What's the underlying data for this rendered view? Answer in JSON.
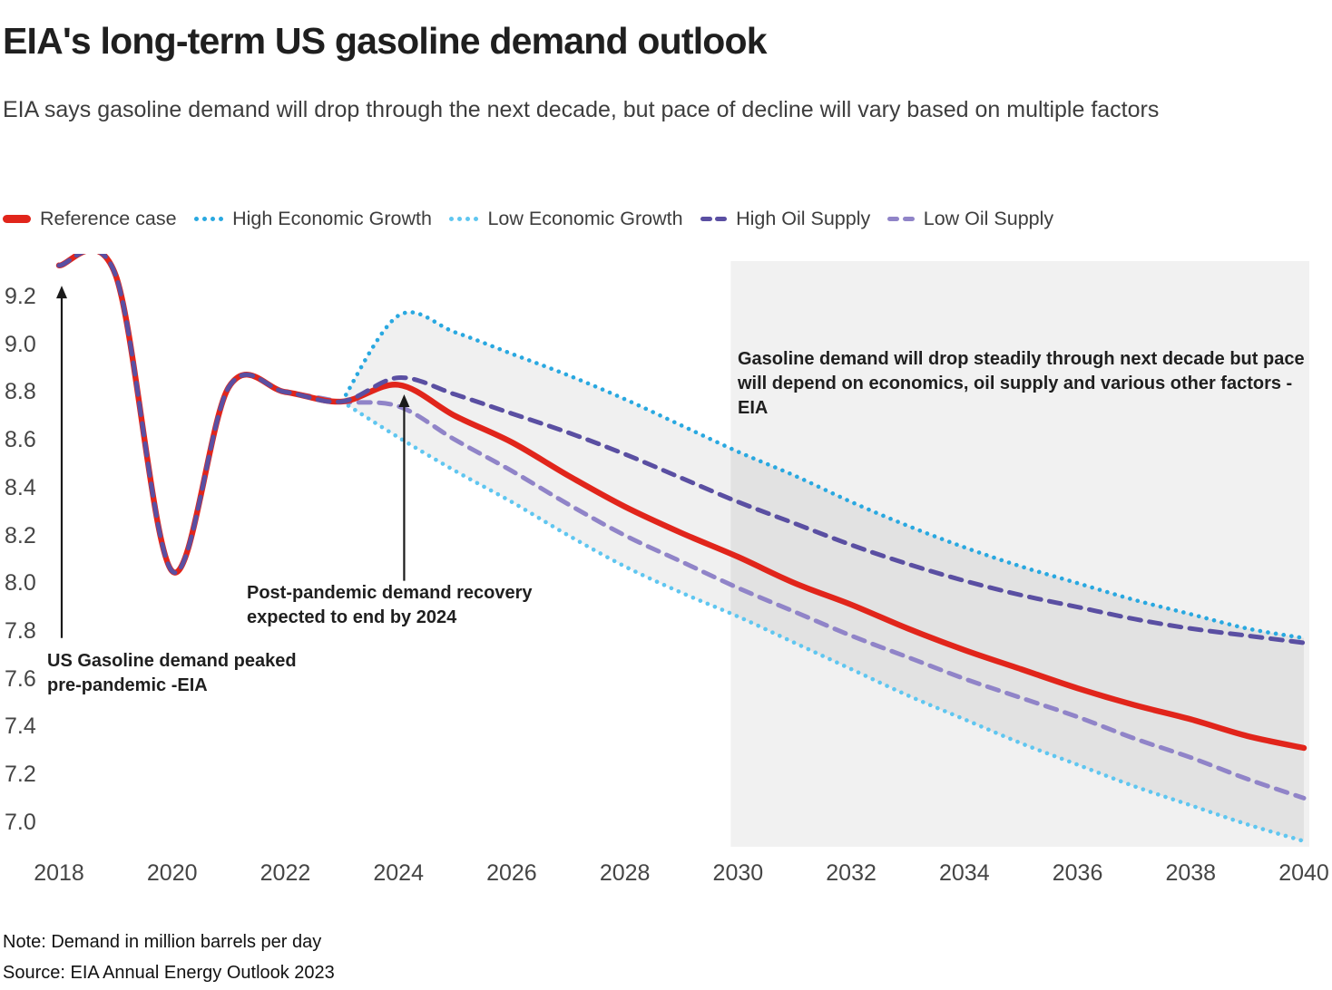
{
  "header": {
    "title": "EIA's long-term US gasoline demand outlook",
    "subtitle": "EIA says gasoline demand will drop through the next decade, but pace of decline will vary based on multiple factors"
  },
  "legend": {
    "items": [
      {
        "label": "Reference case",
        "color": "#e1251b",
        "style": "solid"
      },
      {
        "label": "High Economic Growth",
        "color": "#29a8e0",
        "style": "dotted"
      },
      {
        "label": "Low Economic Growth",
        "color": "#5fc6f0",
        "style": "dotted"
      },
      {
        "label": "High Oil Supply",
        "color": "#5a4fa2",
        "style": "dashed"
      },
      {
        "label": "Low Oil Supply",
        "color": "#9084c8",
        "style": "dashed"
      }
    ]
  },
  "annotations": {
    "peaked": "US Gasoline demand peaked pre-pandemic -EIA",
    "recovery": "Post-pandemic demand recovery expected to end by 2024",
    "highlight": "Gasoline demand will drop steadily through next decade but pace will depend on economics, oil supply and various other factors - EIA"
  },
  "footer": {
    "note": "Note: Demand in million barrels per day",
    "source": "Source: EIA Annual Energy Outlook 2023"
  },
  "chart_data": {
    "type": "line",
    "x": [
      2018,
      2019,
      2020,
      2021,
      2022,
      2023,
      2024,
      2025,
      2026,
      2027,
      2028,
      2029,
      2030,
      2031,
      2032,
      2033,
      2034,
      2035,
      2036,
      2037,
      2038,
      2039,
      2040
    ],
    "series": [
      {
        "name": "Low Economic Growth",
        "color": "#5fc6f0",
        "style": "dotted",
        "values": [
          null,
          null,
          null,
          null,
          null,
          8.76,
          8.61,
          8.47,
          8.34,
          8.2,
          8.07,
          7.96,
          7.86,
          7.75,
          7.64,
          7.53,
          7.43,
          7.33,
          7.24,
          7.15,
          7.07,
          6.99,
          6.92
        ]
      },
      {
        "name": "High Economic Growth",
        "color": "#29a8e0",
        "style": "dotted",
        "values": [
          null,
          null,
          null,
          null,
          null,
          8.76,
          9.12,
          9.05,
          8.96,
          8.87,
          8.77,
          8.66,
          8.55,
          8.45,
          8.34,
          8.24,
          8.15,
          8.07,
          8.0,
          7.93,
          7.87,
          7.81,
          7.77
        ]
      },
      {
        "name": "Low Oil Supply",
        "color": "#9084c8",
        "style": "dashed",
        "values": [
          9.33,
          9.29,
          8.05,
          8.82,
          8.8,
          8.76,
          8.74,
          8.6,
          8.47,
          8.33,
          8.2,
          8.09,
          7.98,
          7.88,
          7.78,
          7.69,
          7.6,
          7.52,
          7.44,
          7.35,
          7.27,
          7.18,
          7.1
        ]
      },
      {
        "name": "Reference case",
        "color": "#e1251b",
        "style": "solid",
        "values": [
          9.33,
          9.29,
          8.05,
          8.82,
          8.8,
          8.76,
          8.83,
          8.7,
          8.59,
          8.45,
          8.32,
          8.21,
          8.11,
          8.0,
          7.91,
          7.81,
          7.72,
          7.64,
          7.56,
          7.49,
          7.43,
          7.36,
          7.31
        ]
      },
      {
        "name": "High Oil Supply",
        "color": "#5a4fa2",
        "style": "dashed",
        "values": [
          9.33,
          9.29,
          8.05,
          8.82,
          8.8,
          8.76,
          8.86,
          8.79,
          8.71,
          8.63,
          8.54,
          8.44,
          8.34,
          8.25,
          8.16,
          8.08,
          8.01,
          7.95,
          7.9,
          7.85,
          7.81,
          7.78,
          7.75
        ]
      }
    ],
    "band_between": [
      "High Economic Growth",
      "Low Economic Growth"
    ],
    "band_color": "rgba(0,0,0,0.06)",
    "highlight_region": {
      "from": 2030,
      "to": 2040,
      "color": "#f1f1f1"
    },
    "y_ticks": [
      9.2,
      9.0,
      8.8,
      8.6,
      8.4,
      8.2,
      8.0,
      7.8,
      7.6,
      7.4,
      7.2,
      7.0
    ],
    "x_ticks": [
      2018,
      2020,
      2022,
      2024,
      2026,
      2028,
      2030,
      2032,
      2034,
      2036,
      2038,
      2040
    ],
    "ylim": [
      6.85,
      9.38
    ],
    "xlim": [
      2018,
      2040
    ],
    "title": "EIA's long-term US gasoline demand outlook",
    "ylabel": "Demand in million barrels per day",
    "xlabel": ""
  }
}
